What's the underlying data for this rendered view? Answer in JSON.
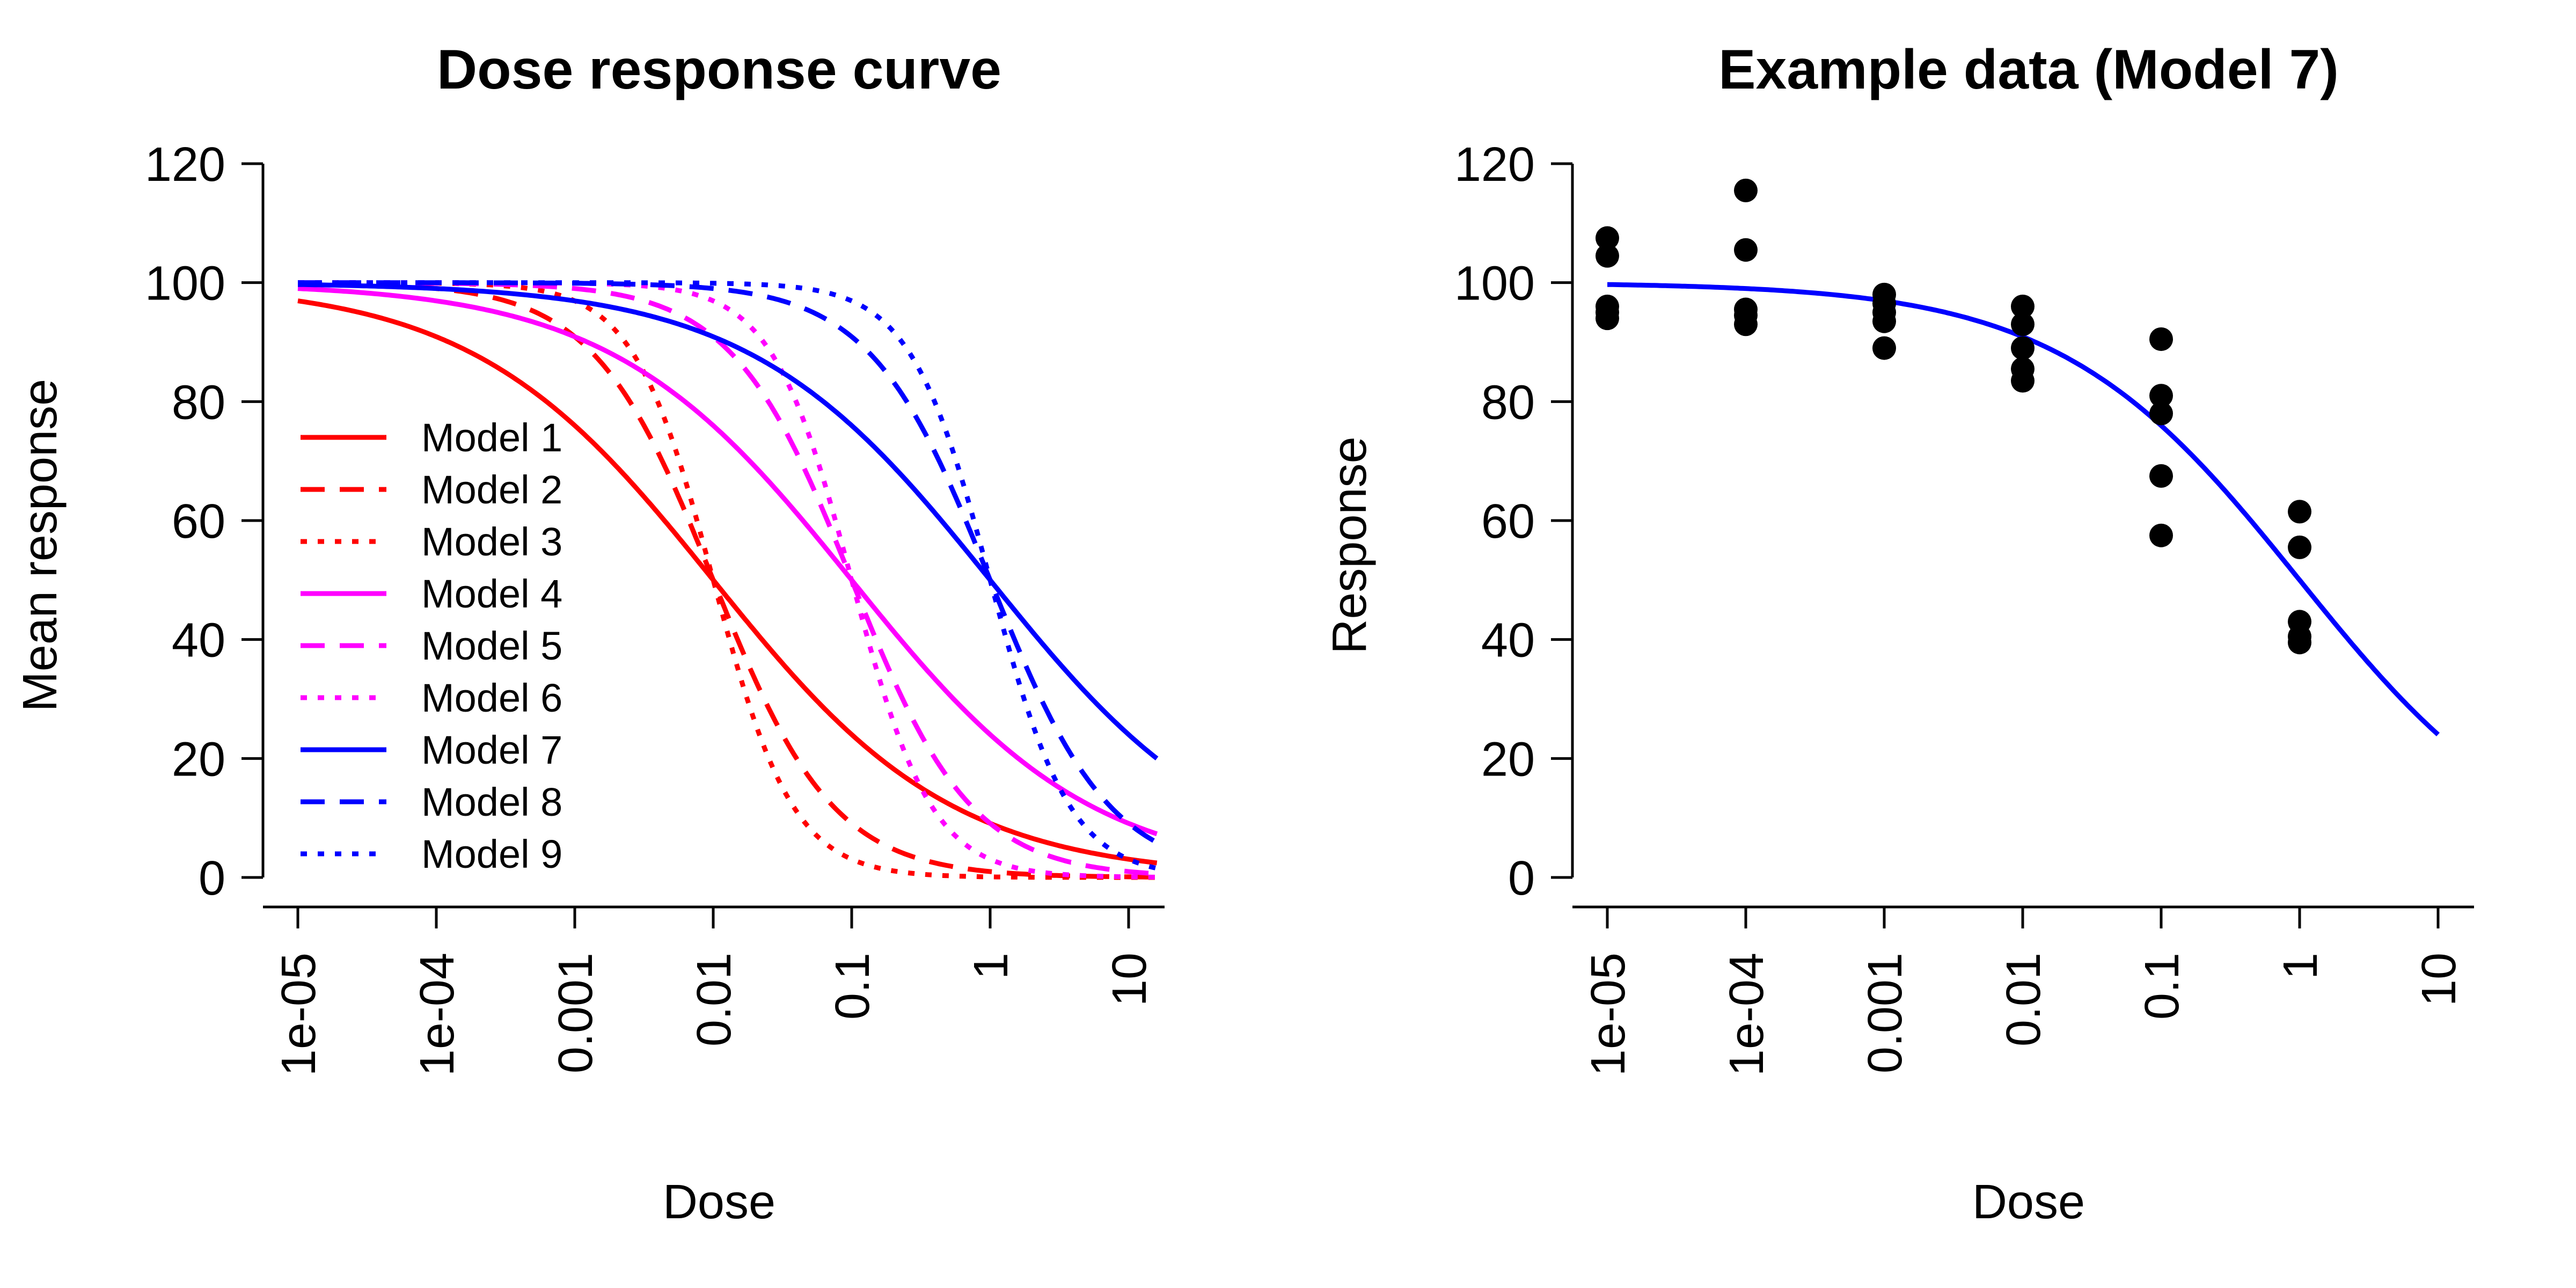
{
  "chart_data": [
    {
      "type": "line",
      "title": "Dose response curve",
      "xlabel": "Dose",
      "ylabel": "Mean response",
      "x_scale": "log10",
      "xlim": [
        1e-05,
        16
      ],
      "ylim": [
        0,
        120
      ],
      "x_ticks": [
        1e-05,
        0.0001,
        0.001,
        0.01,
        0.1,
        1,
        10
      ],
      "x_tick_labels": [
        "1e-05",
        "1e-04",
        "0.001",
        "0.01",
        "0.1",
        "1",
        "10"
      ],
      "y_ticks": [
        0,
        20,
        40,
        60,
        80,
        100,
        120
      ],
      "y_tick_labels": [
        "0",
        "20",
        "40",
        "60",
        "80",
        "100",
        "120"
      ],
      "grid": false,
      "legend": "left-bottom",
      "series": [
        {
          "name": "Model 1",
          "color": "#ff0000",
          "dash": "solid",
          "ec50": 0.01,
          "hill": 0.5,
          "max": 100
        },
        {
          "name": "Model 2",
          "color": "#ff0000",
          "dash": "dashed",
          "ec50": 0.01,
          "hill": 1.0,
          "max": 100
        },
        {
          "name": "Model 3",
          "color": "#ff0000",
          "dash": "dotted",
          "ec50": 0.01,
          "hill": 1.5,
          "max": 100
        },
        {
          "name": "Model 4",
          "color": "#ff00ff",
          "dash": "solid",
          "ec50": 0.1,
          "hill": 0.5,
          "max": 100
        },
        {
          "name": "Model 5",
          "color": "#ff00ff",
          "dash": "dashed",
          "ec50": 0.1,
          "hill": 1.0,
          "max": 100
        },
        {
          "name": "Model 6",
          "color": "#ff00ff",
          "dash": "dotted",
          "ec50": 0.1,
          "hill": 1.5,
          "max": 100
        },
        {
          "name": "Model 7",
          "color": "#0000ff",
          "dash": "solid",
          "ec50": 1.0,
          "hill": 0.5,
          "max": 100
        },
        {
          "name": "Model 8",
          "color": "#0000ff",
          "dash": "dashed",
          "ec50": 1.0,
          "hill": 1.0,
          "max": 100
        },
        {
          "name": "Model 9",
          "color": "#0000ff",
          "dash": "dotted",
          "ec50": 1.0,
          "hill": 1.5,
          "max": 100
        }
      ]
    },
    {
      "type": "scatter",
      "title": "Example data (Model 7)",
      "xlabel": "Dose",
      "ylabel": "Response",
      "x_scale": "log10",
      "xlim": [
        1e-05,
        10
      ],
      "ylim": [
        0,
        120
      ],
      "x_ticks": [
        1e-05,
        0.0001,
        0.001,
        0.01,
        0.1,
        1,
        10
      ],
      "x_tick_labels": [
        "1e-05",
        "1e-04",
        "0.001",
        "0.01",
        "0.1",
        "1",
        "10"
      ],
      "y_ticks": [
        0,
        20,
        40,
        60,
        80,
        100,
        120
      ],
      "y_tick_labels": [
        "0",
        "20",
        "40",
        "60",
        "80",
        "100",
        "120"
      ],
      "grid": false,
      "fit": {
        "color": "#0000ff",
        "ec50": 1.0,
        "hill": 0.5,
        "max": 100,
        "x_range": [
          1e-05,
          10
        ]
      },
      "points": [
        {
          "x": 1e-05,
          "y": 107.5
        },
        {
          "x": 1e-05,
          "y": 104.5
        },
        {
          "x": 1e-05,
          "y": 96.0
        },
        {
          "x": 1e-05,
          "y": 95.0
        },
        {
          "x": 1e-05,
          "y": 94.0
        },
        {
          "x": 0.0001,
          "y": 115.5
        },
        {
          "x": 0.0001,
          "y": 105.5
        },
        {
          "x": 0.0001,
          "y": 95.5
        },
        {
          "x": 0.0001,
          "y": 94.5
        },
        {
          "x": 0.0001,
          "y": 93.0
        },
        {
          "x": 0.001,
          "y": 98.0
        },
        {
          "x": 0.001,
          "y": 96.5
        },
        {
          "x": 0.001,
          "y": 95.0
        },
        {
          "x": 0.001,
          "y": 93.5
        },
        {
          "x": 0.001,
          "y": 89.0
        },
        {
          "x": 0.01,
          "y": 96.0
        },
        {
          "x": 0.01,
          "y": 93.0
        },
        {
          "x": 0.01,
          "y": 89.0
        },
        {
          "x": 0.01,
          "y": 85.5
        },
        {
          "x": 0.01,
          "y": 83.5
        },
        {
          "x": 0.1,
          "y": 90.5
        },
        {
          "x": 0.1,
          "y": 81.0
        },
        {
          "x": 0.1,
          "y": 78.0
        },
        {
          "x": 0.1,
          "y": 67.5
        },
        {
          "x": 0.1,
          "y": 57.5
        },
        {
          "x": 1,
          "y": 61.5
        },
        {
          "x": 1,
          "y": 55.5
        },
        {
          "x": 1,
          "y": 43.0
        },
        {
          "x": 1,
          "y": 40.5
        },
        {
          "x": 1,
          "y": 39.5
        }
      ]
    }
  ]
}
